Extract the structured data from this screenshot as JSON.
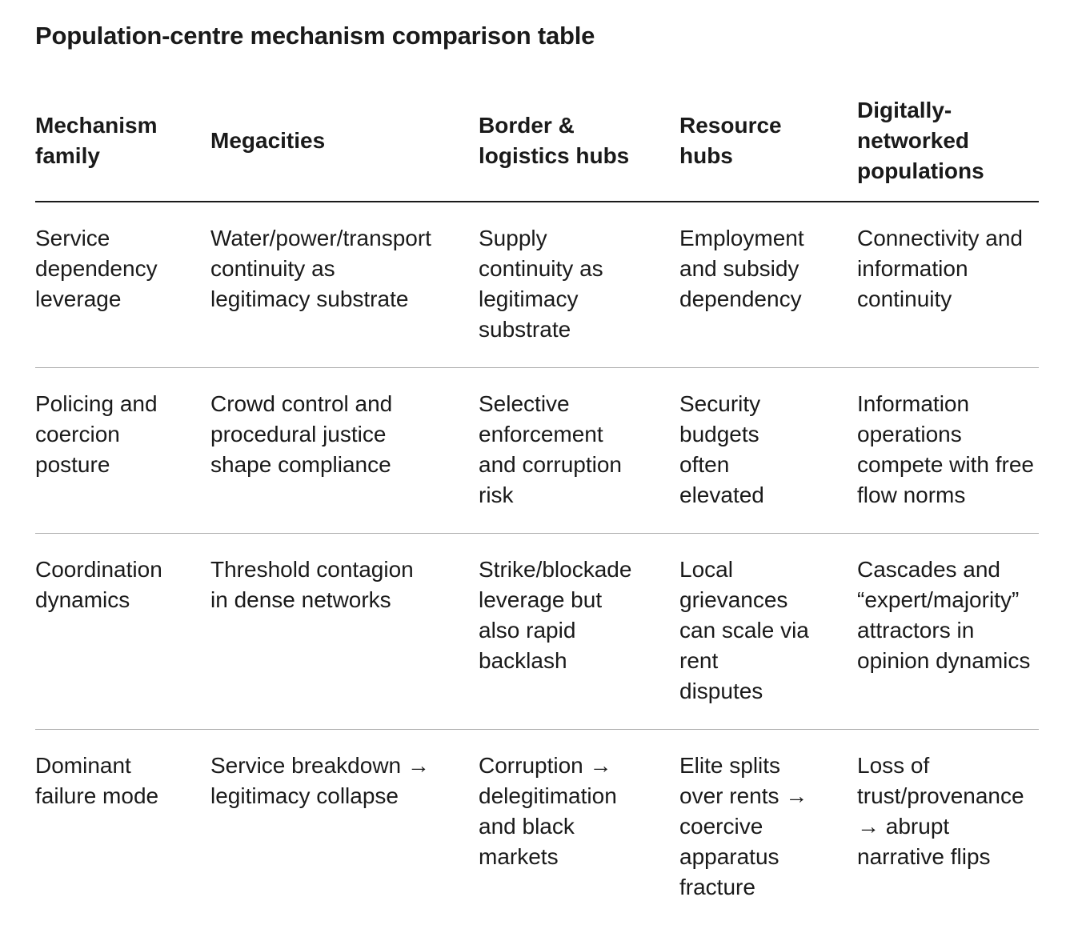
{
  "title": "Population-centre mechanism comparison table",
  "colors": {
    "background": "#ffffff",
    "text": "#1a1a1a",
    "header_rule": "#1a1a1a",
    "row_rule": "#ababab"
  },
  "table": {
    "columns": [
      "Mechanism\nfamily",
      "Megacities",
      "Border &\nlogistics hubs",
      "Resource\nhubs",
      "Digitally-\nnetworked\npopulations"
    ],
    "rows": [
      {
        "label": "Service\ndependency\nleverage",
        "cells": [
          "Water/power/transport\ncontinuity as\nlegitimacy substrate",
          "Supply\ncontinuity as\nlegitimacy\nsubstrate",
          "Employment\nand subsidy\ndependency",
          "Connectivity and\ninformation\ncontinuity"
        ]
      },
      {
        "label": "Policing and\ncoercion\nposture",
        "cells": [
          "Crowd control and\nprocedural justice\nshape compliance",
          "Selective\nenforcement\nand corruption\nrisk",
          "Security\nbudgets\noften\nelevated",
          "Information\noperations\ncompete with free\nflow norms"
        ]
      },
      {
        "label": "Coordination\ndynamics",
        "cells": [
          "Threshold contagion\nin dense networks",
          "Strike/blockade\nleverage but\nalso rapid\nbacklash",
          "Local\ngrievances\ncan scale via\nrent\ndisputes",
          "Cascades and\n“expert/majority”\nattractors in\nopinion dynamics"
        ]
      },
      {
        "label": "Dominant\nfailure mode",
        "cells": [
          "Service breakdown →\nlegitimacy collapse",
          "Corruption →\ndelegitimation\nand black\nmarkets",
          "Elite splits\nover rents →\ncoercive\napparatus\nfracture",
          "Loss of\ntrust/provenance\n→ abrupt\nnarrative flips"
        ]
      }
    ]
  }
}
